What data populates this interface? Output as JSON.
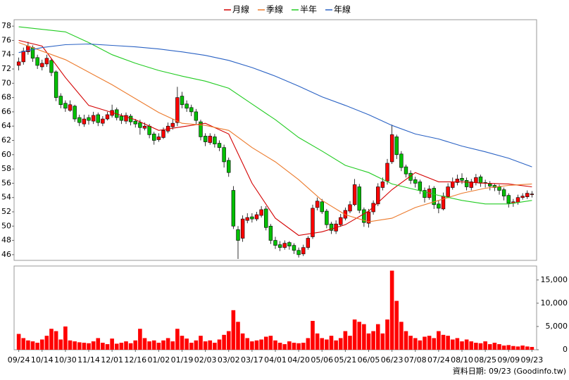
{
  "chart_data": {
    "type": "candlestick",
    "legend_position": "top",
    "up_color": "#ff0000",
    "down_color": "#00c000",
    "xlim": [
      -1,
      111
    ],
    "xticks": [
      {
        "value": 0,
        "label": "09/24"
      },
      {
        "value": 5,
        "label": "10/14"
      },
      {
        "value": 10,
        "label": "10/30"
      },
      {
        "value": 15,
        "label": "11/14"
      },
      {
        "value": 20,
        "label": "12/01"
      },
      {
        "value": 25,
        "label": "12/16"
      },
      {
        "value": 30,
        "label": "01/02"
      },
      {
        "value": 35,
        "label": "01/19"
      },
      {
        "value": 40,
        "label": "02/03"
      },
      {
        "value": 45,
        "label": "03/02"
      },
      {
        "value": 50,
        "label": "03/17"
      },
      {
        "value": 55,
        "label": "04/01"
      },
      {
        "value": 60,
        "label": "04/20"
      },
      {
        "value": 65,
        "label": "05/06"
      },
      {
        "value": 70,
        "label": "05/21"
      },
      {
        "value": 75,
        "label": "06/05"
      },
      {
        "value": 80,
        "label": "06/23"
      },
      {
        "value": 85,
        "label": "07/08"
      },
      {
        "value": 90,
        "label": "07/24"
      },
      {
        "value": 95,
        "label": "08/10"
      },
      {
        "value": 100,
        "label": "08/25"
      },
      {
        "value": 105,
        "label": "09/09"
      },
      {
        "value": 110,
        "label": "09/23"
      }
    ],
    "ylim": [
      45.2,
      78.9
    ],
    "yticks": [
      46,
      48,
      50,
      52,
      54,
      56,
      58,
      60,
      62,
      64,
      66,
      68,
      70,
      72,
      74,
      76,
      78
    ],
    "grid": false,
    "open": [
      72.5,
      73,
      74.4,
      75,
      73.6,
      72.3,
      72.7,
      73.2,
      71.6,
      68.2,
      67.2,
      66.2,
      66.8,
      65.2,
      64.3,
      65.2,
      64.7,
      65.6,
      64.4,
      65,
      65.5,
      66.3,
      65.4,
      64.7,
      65.4,
      64.7,
      64.5,
      63.7,
      64,
      62.9,
      62.1,
      62.4,
      63.3,
      63.9,
      64.5,
      68.2,
      67.1,
      66.6,
      66,
      64.6,
      62.6,
      61.7,
      62.5,
      61.6,
      61,
      59.2,
      55,
      49.5,
      48.3,
      50.8,
      51.3,
      51,
      51.5,
      52.4,
      50,
      48,
      47.4,
      47,
      47.7,
      47.3,
      46.6,
      46.1,
      47,
      48.5,
      52.6,
      53.4,
      52.1,
      50.3,
      49.3,
      50.2,
      51.1,
      52.1,
      53,
      55.5,
      52.3,
      50.4,
      52,
      53.1,
      55.4,
      56.3,
      59,
      62.5,
      60.1,
      58.3,
      57.4,
      56.5,
      56.2,
      55,
      54,
      55.3,
      53.1,
      52.4,
      54.1,
      55.4,
      56.1,
      56.7,
      56.4,
      55.4,
      56.1,
      56.9,
      56.1,
      55.9,
      55.7,
      55.5,
      55.1,
      54.3,
      53.2,
      53.3,
      54,
      54.1,
      54.5
    ],
    "high": [
      73.6,
      75,
      75.8,
      75.3,
      74,
      73.3,
      74,
      73.5,
      71.8,
      68.6,
      67.6,
      67.6,
      67,
      65.6,
      65.6,
      65.6,
      66,
      65.9,
      65.4,
      66,
      67,
      66.6,
      65.8,
      65.9,
      65.7,
      65,
      64.9,
      64.5,
      64.3,
      63.2,
      63,
      63.8,
      64.5,
      65,
      69.5,
      68.8,
      67.6,
      67,
      66.4,
      64.9,
      63,
      63,
      62.9,
      62,
      61.4,
      59.6,
      55.6,
      50,
      51.5,
      51.8,
      51.8,
      52,
      52.8,
      52.8,
      50.3,
      48.5,
      47.9,
      48,
      47.9,
      47.6,
      47,
      47.4,
      48.6,
      53,
      54,
      53.8,
      52.4,
      50.6,
      50.8,
      51.7,
      52.6,
      53.5,
      56.6,
      55.9,
      52.6,
      52.4,
      53.6,
      56,
      56.8,
      59.4,
      64.2,
      62.8,
      60.5,
      58.6,
      57.8,
      56.9,
      56.5,
      55.4,
      55.7,
      55.6,
      53.6,
      54.7,
      56,
      56.8,
      57.2,
      57.4,
      56.8,
      56.6,
      57.3,
      57.2,
      56.5,
      56.3,
      55.9,
      55.8,
      55.4,
      54.6,
      53.8,
      54.4,
      54.6,
      55,
      54.9
    ],
    "low": [
      71.8,
      72.6,
      74,
      73,
      72,
      71.8,
      72.3,
      71,
      67.5,
      66.5,
      66,
      66,
      64.6,
      64,
      63.9,
      64.2,
      64.3,
      64,
      64,
      64.8,
      65.2,
      64.8,
      64.3,
      64.3,
      64.1,
      63.8,
      62.8,
      63.4,
      62.3,
      61.4,
      61.8,
      62.2,
      63,
      63.5,
      64,
      66.5,
      66,
      65.4,
      64.2,
      62,
      61.2,
      61.4,
      61,
      60.5,
      58.2,
      56.9,
      49.6,
      45.4,
      47.8,
      50.4,
      50.5,
      50.7,
      51.2,
      49.4,
      47.5,
      46.8,
      46.5,
      46.7,
      46.7,
      46.1,
      45.6,
      45.8,
      46.7,
      48.2,
      52.2,
      51.7,
      49.7,
      48.9,
      48.9,
      49.9,
      50.8,
      51.8,
      52.8,
      51.8,
      49.9,
      49.8,
      51.6,
      52.8,
      55,
      55.8,
      58.7,
      59.4,
      57.7,
      56.8,
      55.9,
      55.4,
      54.5,
      53.3,
      53.7,
      52.4,
      51.8,
      52.2,
      53.9,
      55.1,
      55.7,
      55.9,
      55,
      55,
      55.7,
      55.5,
      55.4,
      55,
      54.9,
      54.4,
      53.6,
      52.6,
      52.7,
      53,
      53.7,
      53.8,
      54
    ],
    "close": [
      73,
      74.5,
      75.2,
      73.5,
      72.5,
      72.8,
      73.5,
      71.5,
      68,
      67,
      66.5,
      67,
      65,
      64.5,
      65,
      64.8,
      65.5,
      64.5,
      65,
      65.6,
      66.2,
      65.2,
      64.8,
      65.5,
      64.6,
      64.3,
      63.8,
      64,
      62.8,
      62,
      62.5,
      63.4,
      64,
      64.4,
      68,
      67,
      66.5,
      66,
      64.8,
      62.5,
      61.8,
      62.6,
      61.5,
      61,
      59,
      57.5,
      50,
      48,
      51,
      51.2,
      51,
      51.6,
      52.3,
      49.8,
      48,
      47.3,
      47,
      47.6,
      47.2,
      46.6,
      46,
      47,
      48.3,
      52.5,
      53.5,
      52,
      50.2,
      49.4,
      50.3,
      51.2,
      52.2,
      53,
      55.8,
      52.2,
      50.5,
      52,
      53.2,
      55.5,
      56.2,
      58.8,
      62.8,
      60,
      58.2,
      57.3,
      56.4,
      56,
      55,
      54,
      55.2,
      53,
      52.5,
      54.2,
      55.5,
      56.2,
      56.6,
      56.4,
      55.5,
      56.2,
      56.8,
      56,
      56,
      55.6,
      55.4,
      55,
      54.2,
      53.2,
      53.4,
      54,
      54.2,
      54.6,
      54.5
    ],
    "series": [
      {
        "name": "月線",
        "color": "#d40000",
        "x": [
          0,
          5,
          10,
          15,
          20,
          25,
          30,
          35,
          40,
          45,
          50,
          55,
          60,
          65,
          70,
          75,
          80,
          85,
          90,
          95,
          100,
          105,
          110
        ],
        "values": [
          76,
          75.2,
          70.8,
          66.9,
          65.9,
          64.9,
          63.4,
          63.9,
          64.4,
          62.9,
          56,
          51.1,
          48.7,
          49.2,
          50.2,
          52.1,
          55.1,
          57.5,
          56.2,
          56.2,
          56,
          55.9,
          55.5
        ]
      },
      {
        "name": "季線",
        "color": "#ec7a2c",
        "x": [
          0,
          10,
          20,
          30,
          35,
          40,
          45,
          50,
          55,
          60,
          65,
          70,
          75,
          80,
          85,
          90,
          95,
          100,
          105,
          110
        ],
        "values": [
          75.7,
          73.3,
          69.8,
          65.9,
          64.4,
          64.1,
          63.4,
          61,
          59,
          56.5,
          53.6,
          51.6,
          50.6,
          51.1,
          52.6,
          53.6,
          54.6,
          55.3,
          55.7,
          55.9
        ]
      },
      {
        "name": "半年",
        "color": "#22cc22",
        "x": [
          0,
          10,
          15,
          20,
          25,
          30,
          35,
          40,
          45,
          50,
          55,
          60,
          65,
          70,
          75,
          80,
          85,
          90,
          95,
          100,
          105,
          110
        ],
        "values": [
          77.9,
          77.2,
          75.7,
          74,
          72.8,
          71.8,
          71,
          70.3,
          69.3,
          67.1,
          64.9,
          62.4,
          60.5,
          58.5,
          57.5,
          55.9,
          55.1,
          54.3,
          53.6,
          53.1,
          53.1,
          53.6
        ]
      },
      {
        "name": "年線",
        "color": "#2a62c4",
        "x": [
          0,
          5,
          10,
          15,
          20,
          25,
          30,
          35,
          40,
          45,
          50,
          55,
          60,
          65,
          70,
          75,
          80,
          85,
          90,
          95,
          100,
          105,
          110
        ],
        "values": [
          74.3,
          75,
          75.4,
          75.5,
          75.3,
          75.1,
          74.8,
          74.4,
          73.9,
          73.2,
          72.2,
          71,
          69.6,
          68.1,
          66.9,
          65.6,
          64.1,
          62.9,
          62.2,
          61.2,
          60.4,
          59.5,
          58.3
        ]
      }
    ],
    "volume": {
      "color": "#ff0000",
      "ylim": [
        0,
        18000
      ],
      "yticks": [
        0,
        {
          "value": 5000,
          "label": "5,000"
        },
        {
          "value": 10000,
          "label": "10,000"
        },
        {
          "value": 15000,
          "label": "15,000"
        }
      ],
      "values": [
        3400,
        2500,
        2000,
        1800,
        1500,
        2200,
        3000,
        4500,
        4000,
        2200,
        5000,
        2000,
        1800,
        1600,
        1500,
        1400,
        1800,
        2500,
        1500,
        1200,
        2400,
        1300,
        1500,
        1800,
        1400,
        2000,
        4500,
        2500,
        1800,
        2000,
        1500,
        2000,
        2500,
        1800,
        4500,
        3000,
        2400,
        1500,
        2000,
        3000,
        1800,
        2000,
        1500,
        2200,
        3200,
        4000,
        8500,
        6000,
        3500,
        2500,
        1800,
        2000,
        2200,
        2800,
        3000,
        2000,
        1500,
        1200,
        1800,
        1500,
        1400,
        1500,
        2500,
        6200,
        3500,
        2500,
        2200,
        3000,
        2000,
        2500,
        4000,
        3000,
        6500,
        6000,
        5500,
        3500,
        4000,
        5500,
        3500,
        6500,
        17000,
        10500,
        6000,
        4000,
        3000,
        2500,
        2000,
        2800,
        3000,
        2500,
        4000,
        3200,
        3000,
        2200,
        2500,
        1800,
        2200,
        1800,
        1500,
        1400,
        1800,
        1200,
        1500,
        1200,
        900,
        1000,
        800,
        700,
        900,
        700,
        600
      ]
    },
    "source": "資料日期: 09/23 (Goodinfo.tw)"
  }
}
